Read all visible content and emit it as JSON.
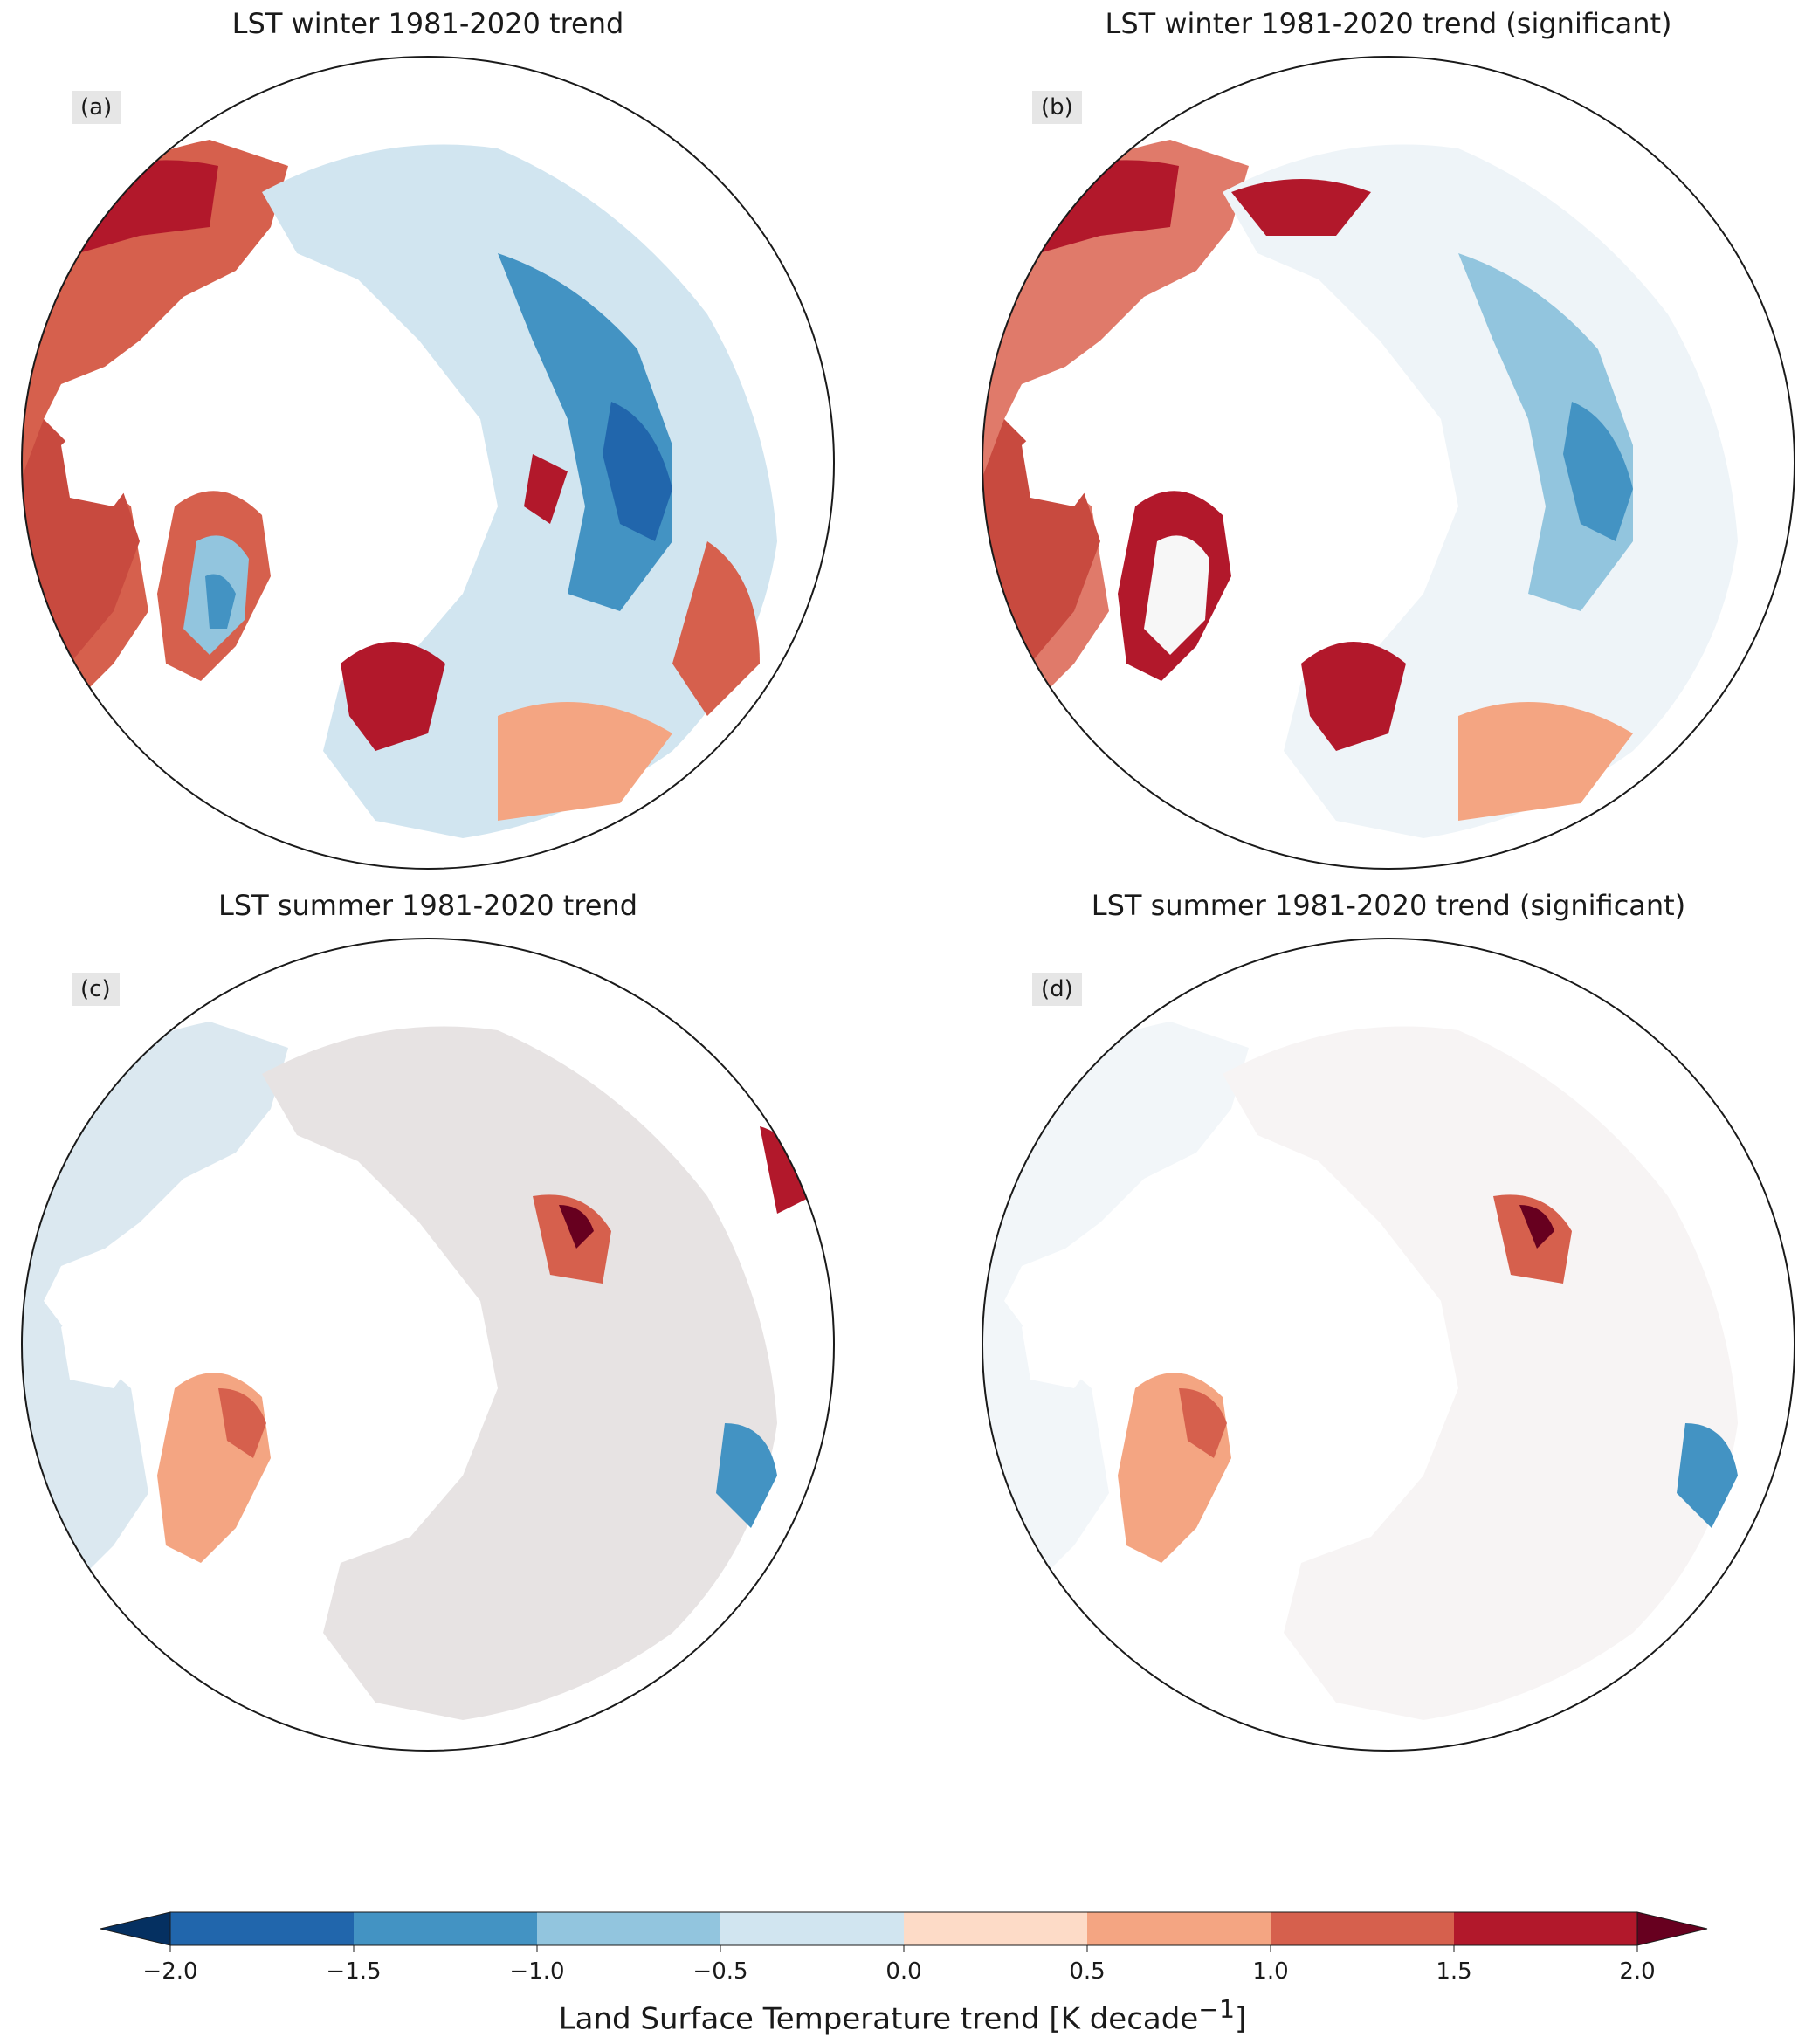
{
  "panels": [
    {
      "id": "a",
      "title": "LST winter 1981-2020 trend",
      "label": "(a)",
      "season": "winter",
      "significant_only": false
    },
    {
      "id": "b",
      "title": "LST winter 1981-2020 trend (significant)",
      "label": "(b)",
      "season": "winter",
      "significant_only": true
    },
    {
      "id": "c",
      "title": "LST summer 1981-2020 trend",
      "label": "(c)",
      "season": "summer",
      "significant_only": false
    },
    {
      "id": "d",
      "title": "LST summer 1981-2020 trend (significant)",
      "label": "(d)",
      "season": "summer",
      "significant_only": true
    }
  ],
  "colorbar": {
    "label": "Land Surface Temperature trend [K decade",
    "label_sup": "−1",
    "label_end": "]",
    "ticks": [
      "−2.0",
      "−1.5",
      "−1.0",
      "−0.5",
      "0.0",
      "0.5",
      "1.0",
      "1.5",
      "2.0"
    ],
    "bins": [
      {
        "from": -2.0,
        "to": -1.5,
        "color": "#2166ac"
      },
      {
        "from": -1.5,
        "to": -1.0,
        "color": "#4393c3"
      },
      {
        "from": -1.0,
        "to": -0.5,
        "color": "#92c5de"
      },
      {
        "from": -0.5,
        "to": 0.0,
        "color": "#d1e5f0"
      },
      {
        "from": 0.0,
        "to": 0.5,
        "color": "#fddbc7"
      },
      {
        "from": 0.5,
        "to": 1.0,
        "color": "#f4a582"
      },
      {
        "from": 1.0,
        "to": 1.5,
        "color": "#d6604d"
      },
      {
        "from": 1.5,
        "to": 2.0,
        "color": "#b2182b"
      }
    ],
    "under_color": "#053061",
    "over_color": "#67001f"
  }
}
